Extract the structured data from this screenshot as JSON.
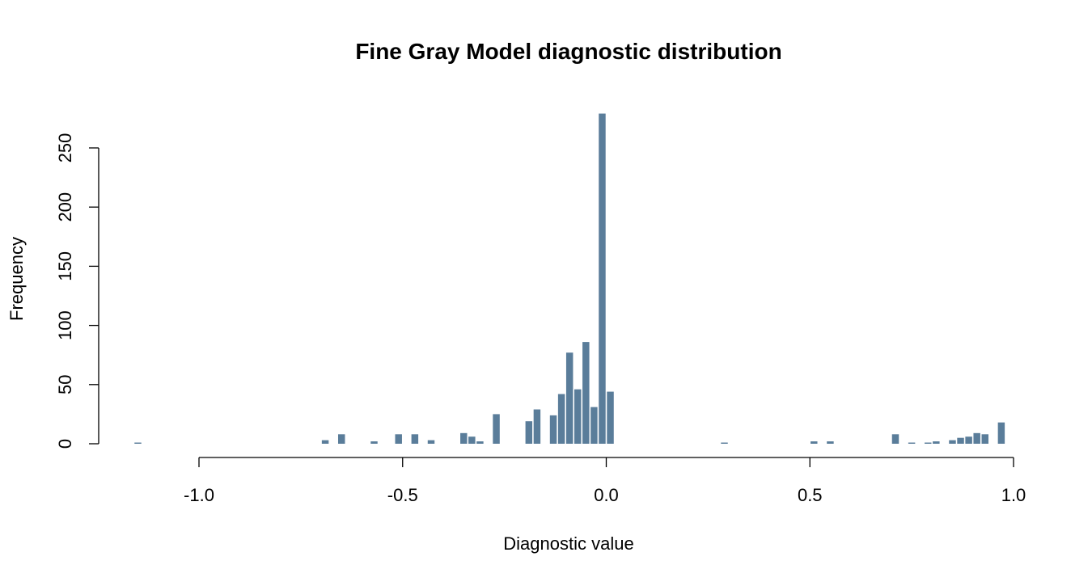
{
  "chart_data": {
    "type": "bar",
    "title": "Fine Gray Model diagnostic distribution",
    "xlabel": "Diagnostic value",
    "ylabel": "Frequency",
    "xlim": [
      -1.2,
      1.0
    ],
    "ylim": [
      0,
      280
    ],
    "bin_width": 0.02,
    "bar_color": "#5a7d9a",
    "x_ticks": [
      {
        "value": -1.0,
        "label": "-1.0"
      },
      {
        "value": -0.5,
        "label": "-0.5"
      },
      {
        "value": 0.0,
        "label": "0.0"
      },
      {
        "value": 0.5,
        "label": "0.5"
      },
      {
        "value": 1.0,
        "label": "1.0"
      }
    ],
    "y_ticks": [
      {
        "value": 0,
        "label": "0"
      },
      {
        "value": 50,
        "label": "50"
      },
      {
        "value": 100,
        "label": "100"
      },
      {
        "value": 150,
        "label": "150"
      },
      {
        "value": 200,
        "label": "200"
      },
      {
        "value": 250,
        "label": "250"
      }
    ],
    "bins": [
      {
        "x": -1.16,
        "count": 1
      },
      {
        "x": -0.7,
        "count": 3
      },
      {
        "x": -0.66,
        "count": 8
      },
      {
        "x": -0.58,
        "count": 2
      },
      {
        "x": -0.52,
        "count": 8
      },
      {
        "x": -0.48,
        "count": 8
      },
      {
        "x": -0.44,
        "count": 3
      },
      {
        "x": -0.36,
        "count": 9
      },
      {
        "x": -0.34,
        "count": 6
      },
      {
        "x": -0.32,
        "count": 2
      },
      {
        "x": -0.28,
        "count": 25
      },
      {
        "x": -0.2,
        "count": 19
      },
      {
        "x": -0.18,
        "count": 29
      },
      {
        "x": -0.14,
        "count": 24
      },
      {
        "x": -0.12,
        "count": 42
      },
      {
        "x": -0.1,
        "count": 77
      },
      {
        "x": -0.08,
        "count": 46
      },
      {
        "x": -0.06,
        "count": 86
      },
      {
        "x": -0.04,
        "count": 31
      },
      {
        "x": -0.02,
        "count": 279
      },
      {
        "x": 0.0,
        "count": 44
      },
      {
        "x": 0.28,
        "count": 1
      },
      {
        "x": 0.5,
        "count": 2
      },
      {
        "x": 0.54,
        "count": 2
      },
      {
        "x": 0.7,
        "count": 8
      },
      {
        "x": 0.74,
        "count": 1
      },
      {
        "x": 0.78,
        "count": 1
      },
      {
        "x": 0.8,
        "count": 2
      },
      {
        "x": 0.84,
        "count": 3
      },
      {
        "x": 0.86,
        "count": 5
      },
      {
        "x": 0.88,
        "count": 6
      },
      {
        "x": 0.9,
        "count": 9
      },
      {
        "x": 0.92,
        "count": 8
      },
      {
        "x": 0.96,
        "count": 18
      }
    ]
  }
}
